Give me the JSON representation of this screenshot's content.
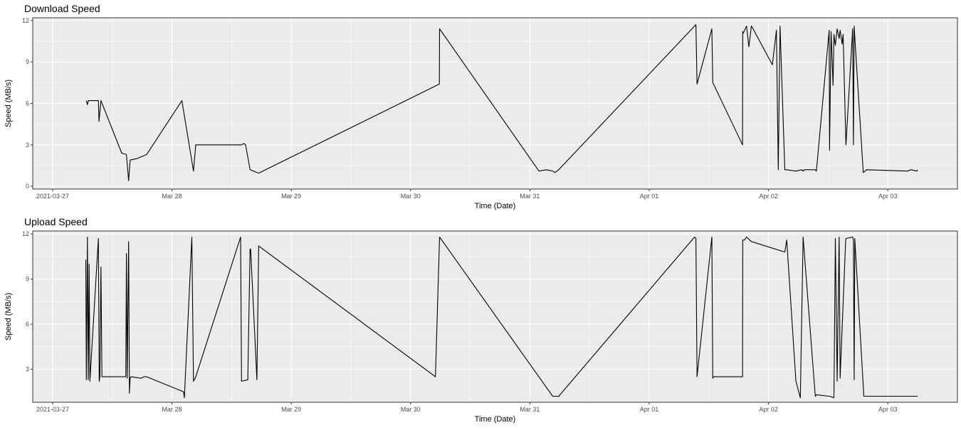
{
  "chart_data": [
    {
      "type": "line",
      "title": "Download Speed",
      "xlabel": "Time (Date)",
      "ylabel": "Speed (MB/s)",
      "xlim": [
        "2021-03-26 20:00",
        "2021-04-03 14:00"
      ],
      "ylim": [
        -0.2,
        12.2
      ],
      "x_ticks": [
        {
          "value": "2021-03-27 00:00",
          "label": "2021-03-27"
        },
        {
          "value": "2021-03-28 00:00",
          "label": "Mar 28"
        },
        {
          "value": "2021-03-29 00:00",
          "label": "Mar 29"
        },
        {
          "value": "2021-03-30 00:00",
          "label": "Mar 30"
        },
        {
          "value": "2021-03-31 00:00",
          "label": "Mar 31"
        },
        {
          "value": "2021-04-01 00:00",
          "label": "Apr 01"
        },
        {
          "value": "2021-04-02 00:00",
          "label": "Apr 02"
        },
        {
          "value": "2021-04-03 00:00",
          "label": "Apr 03"
        }
      ],
      "y_ticks": [
        0,
        3,
        6,
        9,
        12
      ],
      "grid": true,
      "line_color": "#000000",
      "panel_background": "#ebebeb",
      "series": [
        {
          "x": [
            "2021-03-27 06:47",
            "2021-03-27 07:00",
            "2021-03-27 07:10",
            "2021-03-27 09:12",
            "2021-03-27 09:20",
            "2021-03-27 09:43",
            "2021-03-27 13:54",
            "2021-03-27 14:51",
            "2021-03-27 15:17",
            "2021-03-27 15:35",
            "2021-03-27 16:55",
            "2021-03-27 18:55",
            "2021-03-28 02:00",
            "2021-03-28 04:20",
            "2021-03-28 04:47",
            "2021-03-28 14:00",
            "2021-03-28 14:30",
            "2021-03-28 14:49",
            "2021-03-28 15:43",
            "2021-03-28 17:27",
            "2021-03-30 05:47",
            "2021-03-30 05:50",
            "2021-03-31 01:49",
            "2021-03-31 03:18",
            "2021-03-31 04:35",
            "2021-03-31 05:03",
            "2021-03-31 05:48",
            "2021-04-01 09:07",
            "2021-04-01 09:24",
            "2021-04-01 09:37",
            "2021-04-01 12:36",
            "2021-04-01 12:47",
            "2021-04-01 12:56",
            "2021-04-01 18:46",
            "2021-04-01 18:49",
            "2021-04-01 18:56",
            "2021-04-01 19:34",
            "2021-04-01 20:03",
            "2021-04-01 20:33",
            "2021-04-01 20:45",
            "2021-04-02 00:46",
            "2021-04-02 01:35",
            "2021-04-02 01:58",
            "2021-04-02 02:19",
            "2021-04-02 03:17",
            "2021-04-02 03:28",
            "2021-04-02 03:40",
            "2021-04-02 05:31",
            "2021-04-02 06:40",
            "2021-04-02 06:57",
            "2021-04-02 07:14",
            "2021-04-02 09:24",
            "2021-04-02 09:38",
            "2021-04-02 12:12",
            "2021-04-02 12:16",
            "2021-04-02 12:35",
            "2021-04-02 12:59",
            "2021-04-02 13:09",
            "2021-04-02 13:27",
            "2021-04-02 13:48",
            "2021-04-02 14:12",
            "2021-04-02 14:24",
            "2021-04-02 14:48",
            "2021-04-02 15:00",
            "2021-04-02 15:31",
            "2021-04-02 15:35",
            "2021-04-02 16:55",
            "2021-04-02 17:05",
            "2021-04-02 17:13",
            "2021-04-02 17:21",
            "2021-04-02 19:03",
            "2021-04-02 19:26",
            "2021-04-02 19:40",
            "2021-04-03 03:56",
            "2021-04-03 04:40",
            "2021-04-03 05:50",
            "2021-04-03 06:00"
          ],
          "y": [
            6.2,
            5.9,
            6.2,
            6.2,
            4.7,
            6.2,
            2.4,
            2.3,
            0.4,
            1.9,
            2.0,
            2.3,
            6.2,
            1.1,
            3.0,
            3.0,
            3.1,
            3.0,
            1.2,
            0.95,
            7.4,
            11.4,
            1.1,
            1.2,
            1.1,
            1.0,
            1.2,
            11.6,
            11.7,
            7.4,
            11.4,
            7.5,
            7.4,
            3.0,
            11.2,
            11.1,
            11.6,
            10.1,
            11.6,
            11.5,
            8.8,
            11.3,
            1.2,
            11.6,
            1.2,
            1.2,
            1.2,
            1.1,
            1.2,
            1.1,
            1.2,
            1.2,
            1.1,
            11.3,
            2.6,
            11.2,
            7.3,
            11.0,
            10.2,
            11.4,
            10.7,
            11.3,
            10.3,
            11.0,
            3.7,
            3.0,
            11.4,
            3.0,
            11.6,
            10.8,
            1.0,
            1.1,
            1.2,
            1.1,
            1.2,
            1.1,
            1.2
          ]
        }
      ]
    },
    {
      "type": "line",
      "title": "Upload Speed",
      "xlabel": "Time (Date)",
      "ylabel": "Speed (MB/s)",
      "xlim": [
        "2021-03-26 20:00",
        "2021-04-03 14:00"
      ],
      "ylim": [
        0.8,
        12.2
      ],
      "x_ticks": [
        {
          "value": "2021-03-27 00:00",
          "label": "2021-03-27"
        },
        {
          "value": "2021-03-28 00:00",
          "label": "Mar 28"
        },
        {
          "value": "2021-03-29 00:00",
          "label": "Mar 29"
        },
        {
          "value": "2021-03-30 00:00",
          "label": "Mar 30"
        },
        {
          "value": "2021-03-31 00:00",
          "label": "Mar 31"
        },
        {
          "value": "2021-04-01 00:00",
          "label": "Apr 01"
        },
        {
          "value": "2021-04-02 00:00",
          "label": "Apr 02"
        },
        {
          "value": "2021-04-03 00:00",
          "label": "Apr 03"
        }
      ],
      "y_ticks": [
        3,
        6,
        9,
        12
      ],
      "grid": true,
      "line_color": "#000000",
      "panel_background": "#ebebeb",
      "series": [
        {
          "x": [
            "2021-03-27 06:40",
            "2021-03-27 06:47",
            "2021-03-27 07:00",
            "2021-03-27 07:10",
            "2021-03-27 07:20",
            "2021-03-27 07:30",
            "2021-03-27 09:12",
            "2021-03-27 09:22",
            "2021-03-27 09:30",
            "2021-03-27 09:43",
            "2021-03-27 09:55",
            "2021-03-27 14:43",
            "2021-03-27 14:51",
            "2021-03-27 15:00",
            "2021-03-27 15:17",
            "2021-03-27 15:27",
            "2021-03-27 15:35",
            "2021-03-27 15:45",
            "2021-03-27 17:50",
            "2021-03-27 18:20",
            "2021-03-27 18:55",
            "2021-03-28 02:20",
            "2021-03-28 02:30",
            "2021-03-28 04:00",
            "2021-03-28 04:20",
            "2021-03-28 04:47",
            "2021-03-28 13:49",
            "2021-03-28 14:00",
            "2021-03-28 15:15",
            "2021-03-28 15:43",
            "2021-03-28 15:50",
            "2021-03-28 17:05",
            "2021-03-28 17:27",
            "2021-03-30 05:00",
            "2021-03-30 05:50",
            "2021-03-31 04:35",
            "2021-03-31 05:48",
            "2021-04-01 09:07",
            "2021-04-01 09:24",
            "2021-04-01 09:37",
            "2021-04-01 12:36",
            "2021-04-01 12:47",
            "2021-04-01 12:56",
            "2021-04-01 18:46",
            "2021-04-01 18:49",
            "2021-04-01 19:10",
            "2021-04-01 19:34",
            "2021-04-01 20:33",
            "2021-04-02 03:17",
            "2021-04-02 03:40",
            "2021-04-02 05:31",
            "2021-04-02 06:24",
            "2021-04-02 06:57",
            "2021-04-02 09:24",
            "2021-04-02 09:38",
            "2021-04-02 12:12",
            "2021-04-02 12:16",
            "2021-04-02 13:09",
            "2021-04-02 13:27",
            "2021-04-02 13:48",
            "2021-04-02 14:12",
            "2021-04-02 14:24",
            "2021-04-02 15:31",
            "2021-04-02 15:35",
            "2021-04-02 16:55",
            "2021-04-02 17:05",
            "2021-04-02 17:13",
            "2021-04-02 17:21",
            "2021-04-02 19:10",
            "2021-04-02 19:40",
            "2021-04-03 04:40",
            "2021-04-03 05:50",
            "2021-04-03 06:00"
          ],
          "y": [
            10.3,
            2.3,
            11.8,
            2.3,
            10.0,
            2.2,
            11.7,
            2.2,
            2.5,
            9.8,
            2.5,
            2.5,
            10.7,
            2.4,
            11.5,
            1.4,
            2.4,
            2.5,
            2.4,
            2.5,
            2.5,
            1.5,
            1.1,
            11.8,
            2.2,
            2.5,
            11.8,
            2.2,
            2.3,
            11.0,
            11.0,
            2.3,
            11.2,
            2.5,
            11.8,
            1.2,
            1.2,
            11.8,
            11.7,
            2.5,
            11.8,
            2.4,
            2.5,
            2.5,
            11.6,
            11.6,
            11.8,
            11.5,
            10.8,
            11.6,
            2.2,
            1.1,
            11.8,
            1.2,
            1.3,
            1.2,
            1.2,
            1.1,
            11.7,
            2.2,
            11.8,
            2.4,
            11.6,
            11.7,
            11.8,
            11.6,
            2.3,
            11.7,
            1.2,
            1.2,
            1.2,
            1.2,
            1.2
          ]
        }
      ]
    }
  ]
}
